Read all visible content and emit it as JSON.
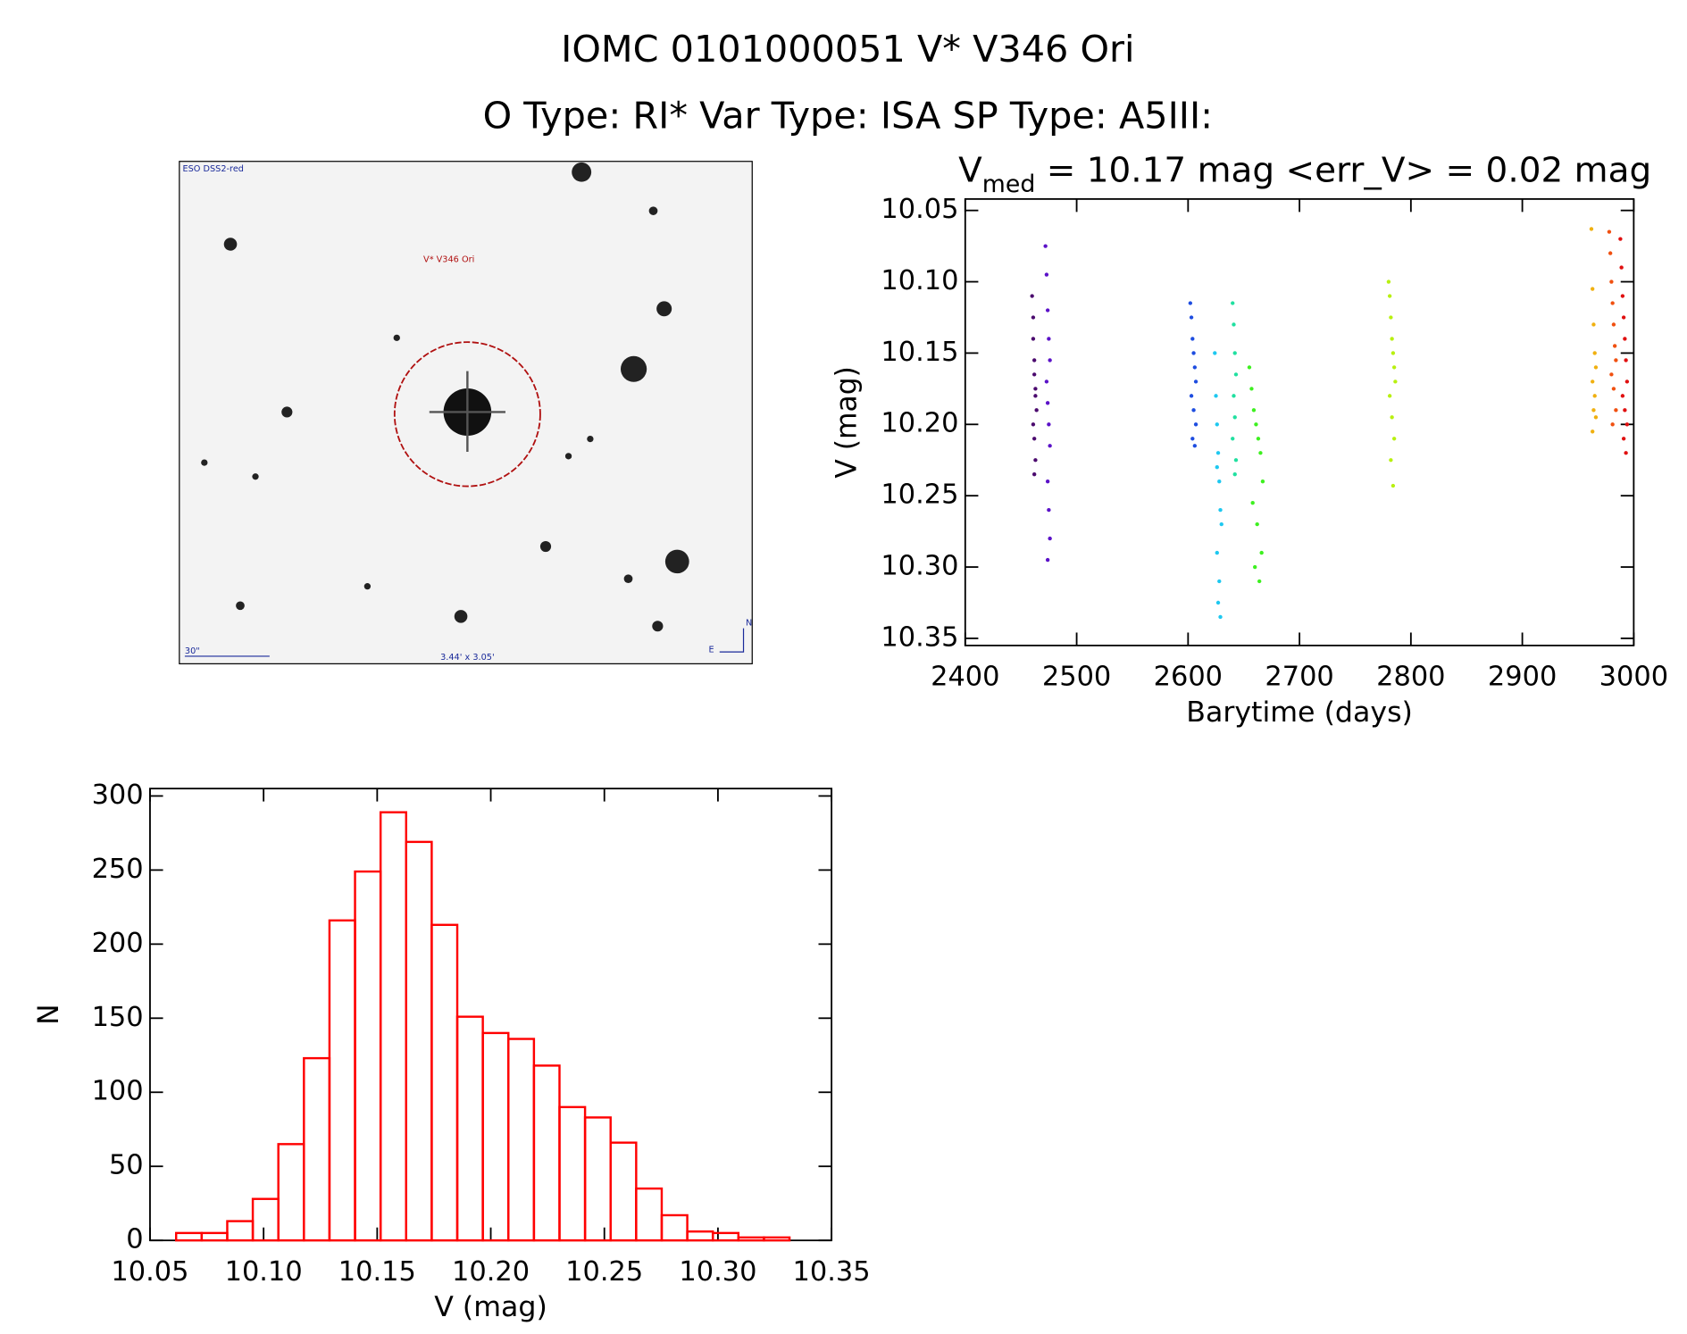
{
  "title": "IOMC 0101000051   V* V346 Ori",
  "subtitle": "O Type: RI*  Var Type: ISA  SP Type: A5III:",
  "image": {
    "survey": "ESO DSS2-red",
    "target": "V* V346 Ori",
    "scale": "30\"",
    "field": "3.44' x 3.05'",
    "north": "N",
    "east": "E"
  },
  "chart_data": [
    {
      "type": "scatter",
      "title_main": "V",
      "title_sub": "med",
      "title_rest": " = 10.17 mag <err_V> = 0.02 mag",
      "x_label": "Barytime (days)",
      "y_label": "V (mag)",
      "xlim": [
        2400,
        3000
      ],
      "xticks": [
        2400,
        2500,
        2600,
        2700,
        2800,
        2900,
        3000
      ],
      "ylim": [
        10.355,
        10.042
      ],
      "yticks": [
        10.05,
        {
          "value": 10.1,
          "label": "10.10"
        },
        10.15,
        {
          "value": 10.2,
          "label": "10.20"
        },
        10.25,
        {
          "value": 10.3,
          "label": "10.30"
        },
        10.35
      ],
      "series": [
        {
          "color": "#4b0a6e",
          "x": [
            2460,
            2461,
            2461,
            2462,
            2462,
            2463,
            2463,
            2464,
            2461,
            2462,
            2463,
            2462
          ],
          "values": [
            10.11,
            10.125,
            10.14,
            10.155,
            10.165,
            10.175,
            10.18,
            10.19,
            10.2,
            10.21,
            10.225,
            10.235
          ]
        },
        {
          "color": "#5b12c8",
          "x": [
            2472,
            2473,
            2474,
            2475,
            2476,
            2473,
            2474,
            2475,
            2476,
            2474,
            2475,
            2476,
            2474
          ],
          "values": [
            10.075,
            10.095,
            10.12,
            10.14,
            10.155,
            10.17,
            10.185,
            10.2,
            10.215,
            10.24,
            10.26,
            10.28,
            10.295
          ]
        },
        {
          "color": "#1e4de0",
          "x": [
            2602,
            2603,
            2604,
            2605,
            2606,
            2607,
            2603,
            2605,
            2607,
            2604,
            2606
          ],
          "values": [
            10.115,
            10.125,
            10.14,
            10.15,
            10.16,
            10.17,
            10.18,
            10.19,
            10.2,
            10.21,
            10.215
          ]
        },
        {
          "color": "#1ec8f0",
          "x": [
            2624,
            2625,
            2626,
            2627,
            2628,
            2629,
            2630,
            2626,
            2628,
            2627,
            2629,
            2626
          ],
          "values": [
            10.15,
            10.18,
            10.2,
            10.22,
            10.24,
            10.26,
            10.27,
            10.29,
            10.31,
            10.325,
            10.335,
            10.23
          ]
        },
        {
          "color": "#20e0a0",
          "x": [
            2640,
            2641,
            2642,
            2643,
            2641,
            2642,
            2640,
            2643,
            2642
          ],
          "values": [
            10.115,
            10.13,
            10.15,
            10.165,
            10.18,
            10.195,
            10.21,
            10.225,
            10.235
          ]
        },
        {
          "color": "#3ef020",
          "x": [
            2655,
            2657,
            2659,
            2661,
            2663,
            2665,
            2667,
            2658,
            2662,
            2666,
            2660,
            2664
          ],
          "values": [
            10.16,
            10.175,
            10.19,
            10.2,
            10.21,
            10.22,
            10.24,
            10.255,
            10.27,
            10.29,
            10.3,
            10.31
          ]
        },
        {
          "color": "#b8f010",
          "x": [
            2780,
            2781,
            2782,
            2783,
            2784,
            2785,
            2786,
            2781,
            2783,
            2785,
            2782,
            2784
          ],
          "values": [
            10.1,
            10.11,
            10.125,
            10.14,
            10.15,
            10.16,
            10.17,
            10.18,
            10.195,
            10.21,
            10.225,
            10.243
          ]
        },
        {
          "color": "#f0b010",
          "x": [
            2962,
            2963,
            2964,
            2965,
            2966,
            2963,
            2965,
            2964,
            2966,
            2963
          ],
          "values": [
            10.063,
            10.105,
            10.13,
            10.15,
            10.16,
            10.17,
            10.18,
            10.19,
            10.195,
            10.205
          ]
        },
        {
          "color": "#f05010",
          "x": [
            2978,
            2979,
            2980,
            2981,
            2982,
            2983,
            2984,
            2980,
            2982,
            2984,
            2981
          ],
          "values": [
            10.065,
            10.08,
            10.1,
            10.115,
            10.13,
            10.145,
            10.155,
            10.165,
            10.175,
            10.19,
            10.2
          ]
        },
        {
          "color": "#e01010",
          "x": [
            2988,
            2989,
            2990,
            2991,
            2992,
            2993,
            2994,
            2990,
            2992,
            2994,
            2991,
            2993
          ],
          "values": [
            10.07,
            10.09,
            10.11,
            10.125,
            10.14,
            10.155,
            10.17,
            10.18,
            10.19,
            10.2,
            10.21,
            10.22
          ]
        }
      ]
    },
    {
      "type": "histogram",
      "x_label": "V (mag)",
      "y_label": "N",
      "color": "#ff0000",
      "xlim": [
        10.05,
        10.35
      ],
      "xticks": [
        10.05,
        {
          "value": 10.1,
          "label": "10.10"
        },
        10.15,
        {
          "value": 10.2,
          "label": "10.20"
        },
        10.25,
        {
          "value": 10.3,
          "label": "10.30"
        },
        10.35
      ],
      "ylim": [
        0,
        305
      ],
      "yticks": [
        0,
        50,
        100,
        150,
        200,
        250,
        300
      ],
      "bins": [
        10.0615,
        10.07275,
        10.084,
        10.09525,
        10.1065,
        10.11775,
        10.129,
        10.14025,
        10.1515,
        10.16275,
        10.174,
        10.18525,
        10.1965,
        10.20775,
        10.219,
        10.23025,
        10.2415,
        10.25275,
        10.264,
        10.27525,
        10.2865,
        10.29775,
        10.309,
        10.32025,
        10.3315
      ],
      "values": [
        5,
        5,
        13,
        28,
        65,
        123,
        216,
        249,
        289,
        269,
        213,
        151,
        140,
        136,
        118,
        90,
        83,
        66,
        35,
        17,
        6,
        5,
        2,
        2
      ]
    }
  ]
}
